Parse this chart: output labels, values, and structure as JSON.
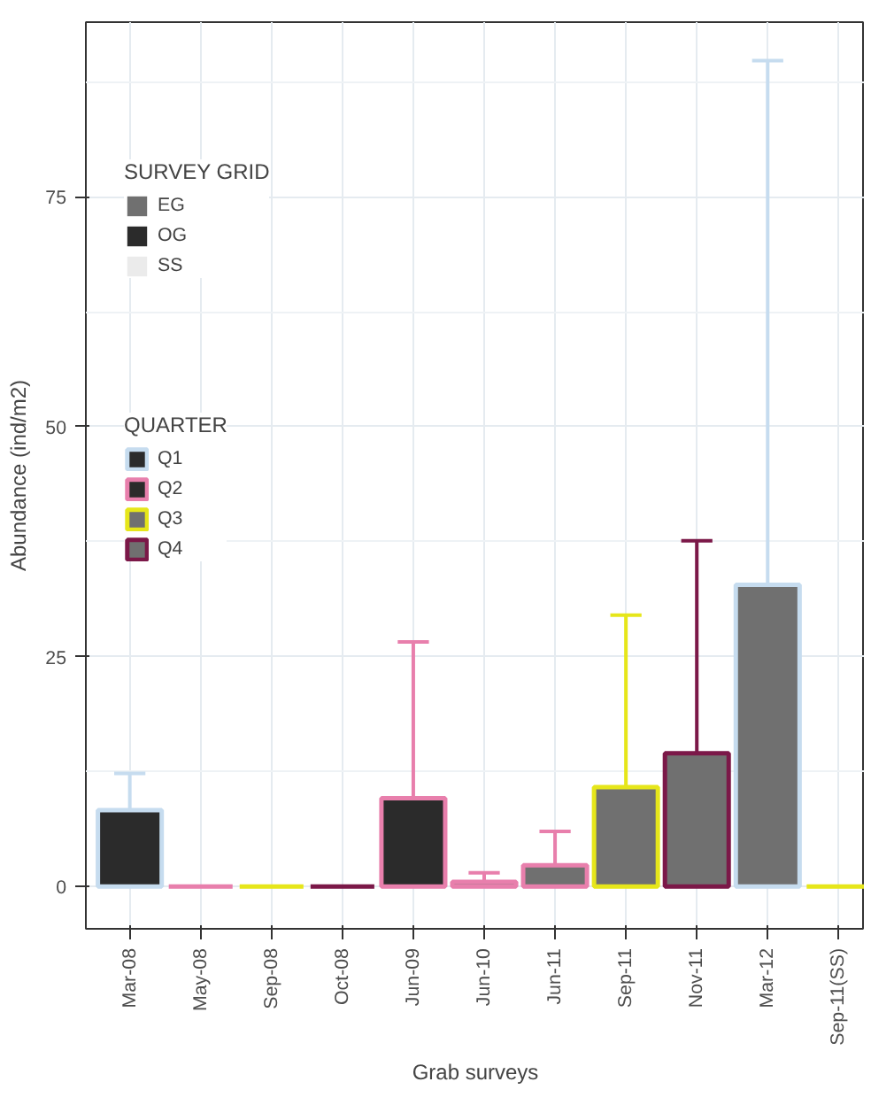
{
  "chart_data": {
    "type": "bar",
    "xlabel": "Grab surveys",
    "ylabel": "Abundance (ind/m2)",
    "categories": [
      "Mar-08",
      "May-08",
      "Sep-08",
      "Oct-08",
      "Jun-09",
      "Jun-10",
      "Jun-11",
      "Sep-11",
      "Nov-11",
      "Mar-12",
      "Sep-11(SS)"
    ],
    "legend_title": [
      "SURVEY GRID",
      "QUARTER"
    ],
    "series": [
      {
        "name": "EG",
        "color": "#707070",
        "values": [
          null,
          null,
          null,
          null,
          null,
          null,
          null,
          null,
          null,
          null,
          null
        ]
      },
      {
        "name": "OG",
        "color": "#2b2b2b",
        "values": [
          null,
          null,
          null,
          null,
          null,
          null,
          null,
          null,
          null,
          null,
          null
        ]
      },
      {
        "name": "SS",
        "color": "#ebebeb",
        "values": [
          null,
          null,
          null,
          null,
          null,
          null,
          null,
          null,
          null,
          null,
          null
        ]
      },
      {
        "name": "Q1",
        "color": "#c6dcef",
        "values": [
          8.3,
          null,
          null,
          null,
          null,
          null,
          null,
          null,
          null,
          32.8,
          null
        ],
        "errors": [
          [
            8.3,
            12.3
          ],
          null,
          null,
          null,
          null,
          null,
          null,
          null,
          null,
          [
            32.8,
            89.8
          ],
          null
        ],
        "colors": [
          "#2b2b2b",
          null,
          null,
          null,
          null,
          null,
          null,
          null,
          null,
          "#707070",
          null
        ]
      },
      {
        "name": "Q2",
        "color": "#e87fac",
        "values": [
          null,
          0,
          null,
          null,
          9.6,
          0.5,
          2.3,
          null,
          null,
          null,
          null
        ],
        "errors": [
          null,
          null,
          null,
          null,
          [
            9.6,
            26.6
          ],
          [
            0.5,
            1.5
          ],
          [
            2.3,
            6.0
          ],
          null,
          null,
          null,
          null
        ],
        "colors": [
          null,
          null,
          null,
          null,
          "#2b2b2b",
          "#707070",
          "#707070",
          null,
          null,
          null,
          null
        ]
      },
      {
        "name": "Q3",
        "color": "#e6e61a",
        "values": [
          null,
          null,
          0,
          null,
          null,
          null,
          null,
          10.8,
          null,
          null,
          0
        ],
        "errors": [
          null,
          null,
          null,
          null,
          null,
          null,
          null,
          [
            10.8,
            29.5
          ],
          null,
          null,
          null
        ],
        "colors": [
          null,
          null,
          null,
          null,
          null,
          null,
          null,
          "#707070",
          null,
          null,
          null
        ]
      },
      {
        "name": "Q4",
        "color": "#7b1848",
        "values": [
          null,
          null,
          null,
          0,
          null,
          null,
          null,
          null,
          14.5,
          null,
          null
        ],
        "errors": [
          null,
          null,
          null,
          null,
          null,
          null,
          null,
          null,
          [
            14.5,
            37.6
          ],
          null,
          null
        ],
        "colors": [
          null,
          null,
          null,
          null,
          null,
          null,
          null,
          null,
          "#707070",
          null,
          null
        ]
      }
    ],
    "ylim": [
      -4.6,
      94
    ],
    "yticks": [
      0,
      25,
      50,
      75
    ],
    "grid": true,
    "legend": "top left"
  }
}
